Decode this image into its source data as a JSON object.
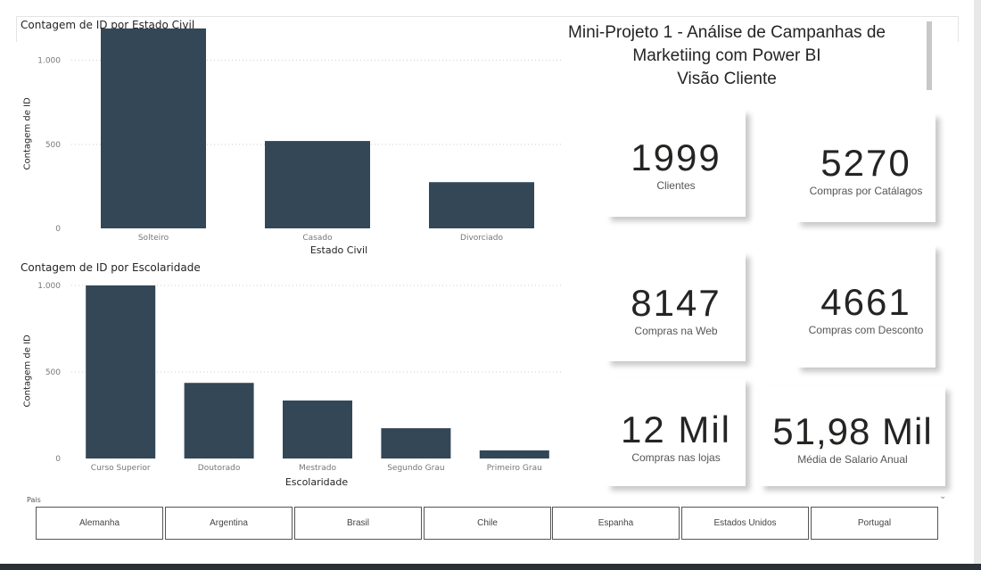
{
  "report": {
    "title_line1": "Mini-Projeto 1 - Análise de Campanhas de",
    "title_line2": "Marketiing com Power BI",
    "title_line3": "Visão Cliente"
  },
  "colors": {
    "bar": "#344756"
  },
  "chart_data": [
    {
      "type": "bar",
      "title": "Contagem de ID por Estado Civil",
      "xlabel": "Estado Civil",
      "ylabel": "Contagem de ID",
      "categories": [
        "Solteiro",
        "Casado",
        "Divorciado"
      ],
      "values": [
        1190,
        520,
        275
      ],
      "ylim": [
        0,
        1200
      ],
      "yticks": [
        0,
        500,
        1000
      ],
      "ytick_labels": [
        "0",
        "500",
        "1.000"
      ],
      "grid": true
    },
    {
      "type": "bar",
      "title": "Contagem de ID por Escolaridade",
      "xlabel": "Escolaridade",
      "ylabel": "Contagem de ID",
      "categories": [
        "Curso Superior",
        "Doutorado",
        "Mestrado",
        "Segundo Grau",
        "Primeiro Grau"
      ],
      "values": [
        1000,
        437,
        335,
        175,
        47
      ],
      "ylim": [
        0,
        1000
      ],
      "yticks": [
        0,
        500,
        1000
      ],
      "ytick_labels": [
        "0",
        "500",
        "1.000"
      ],
      "grid": true
    }
  ],
  "cards": [
    {
      "value": "1999",
      "label": "Clientes"
    },
    {
      "value": "5270",
      "label": "Compras por Catálagos"
    },
    {
      "value": "8147",
      "label": "Compras na Web"
    },
    {
      "value": "4661",
      "label": "Compras com Desconto"
    },
    {
      "value": "12 Mil",
      "label": "Compras nas lojas"
    },
    {
      "value": "51,98 Mil",
      "label": "Média de Salario Anual"
    }
  ],
  "slicer": {
    "label": "Pais",
    "items": [
      "Alemanha",
      "Argentina",
      "Brasil",
      "Chile",
      "Espanha",
      "Estados Unidos",
      "Portugal"
    ]
  }
}
